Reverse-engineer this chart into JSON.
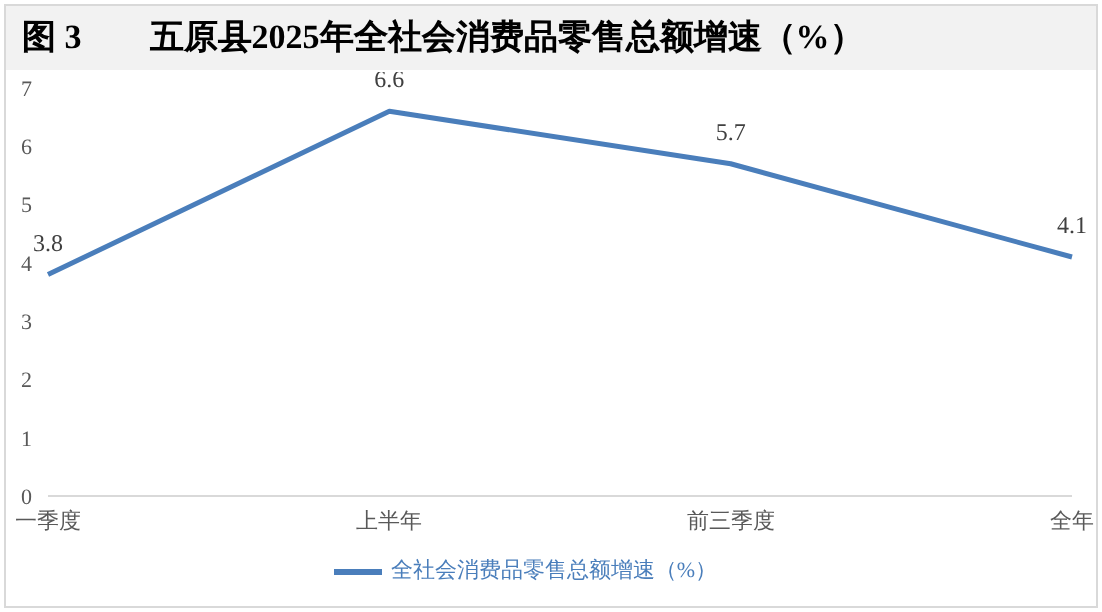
{
  "chart_data": {
    "type": "line",
    "title": "图 3　　五原县2025年全社会消费品零售总额增速（%）",
    "categories": [
      "一季度",
      "上半年",
      "前三季度",
      "全年"
    ],
    "series": [
      {
        "name": "全社会消费品零售总额增速（%）",
        "color": "#4a7ebb",
        "values": [
          3.8,
          6.6,
          5.7,
          4.1
        ]
      }
    ],
    "ylim": [
      0,
      7
    ],
    "yticks": [
      0,
      1,
      2,
      3,
      4,
      5,
      6,
      7
    ],
    "grid": false,
    "legend": "bottom",
    "marker": "none",
    "line_style": "solid",
    "data_labels": true
  }
}
